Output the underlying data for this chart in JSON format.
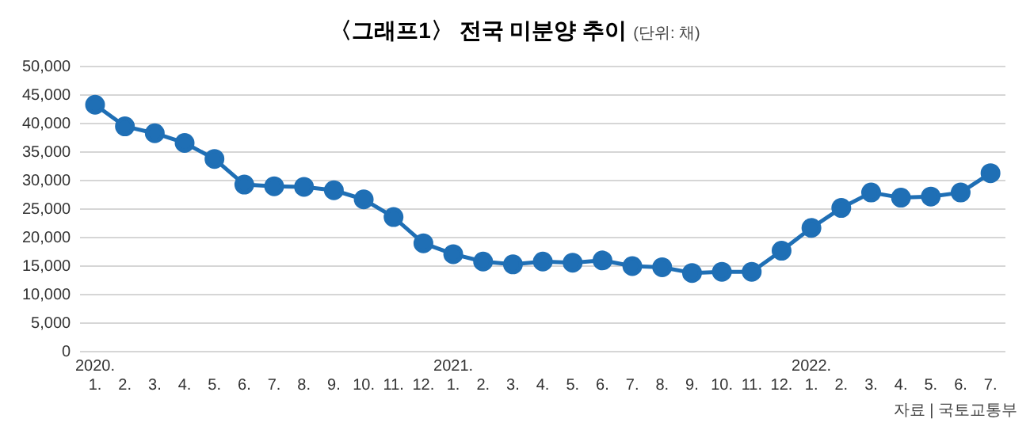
{
  "chart_data": {
    "type": "line",
    "title": "〈그래프1〉 전국 미분양 추이",
    "subtitle": "(단위: 채)",
    "annotations": [
      "자료 | 국토교통부"
    ],
    "categories": [
      "2020. 1.",
      "2.",
      "3.",
      "4.",
      "5.",
      "6.",
      "7.",
      "8.",
      "9.",
      "10.",
      "11.",
      "12.",
      "2021. 1.",
      "2.",
      "3.",
      "4.",
      "5.",
      "6.",
      "7.",
      "8.",
      "9.",
      "10.",
      "11.",
      "12.",
      "2022. 1.",
      "2.",
      "3.",
      "4.",
      "5.",
      "6.",
      "7."
    ],
    "series": [
      {
        "color": "#1f6fb5",
        "values": [
          43300,
          39500,
          38300,
          36600,
          33800,
          29300,
          29000,
          28900,
          28300,
          26700,
          23600,
          19000,
          17100,
          15800,
          15300,
          15800,
          15600,
          16000,
          15000,
          14800,
          13800,
          14000,
          14000,
          17700,
          21700,
          25200,
          27900,
          27000,
          27200,
          27900,
          31300
        ]
      }
    ],
    "ylim": [
      0,
      50000
    ],
    "yticks": [
      0,
      {
        "value": 5000,
        "label": "5,000"
      },
      {
        "value": 10000,
        "label": "10,000"
      },
      {
        "value": 15000,
        "label": "15,000"
      },
      {
        "value": 20000,
        "label": "20,000"
      },
      {
        "value": 25000,
        "label": "25,000"
      },
      {
        "value": 30000,
        "label": "30,000"
      },
      {
        "value": 35000,
        "label": "35,000"
      },
      {
        "value": 40000,
        "label": "40,000"
      },
      {
        "value": 45000,
        "label": "45,000"
      },
      {
        "value": 50000,
        "label": "50,000"
      }
    ],
    "grid": "y",
    "marker": "circle",
    "legend": false
  }
}
